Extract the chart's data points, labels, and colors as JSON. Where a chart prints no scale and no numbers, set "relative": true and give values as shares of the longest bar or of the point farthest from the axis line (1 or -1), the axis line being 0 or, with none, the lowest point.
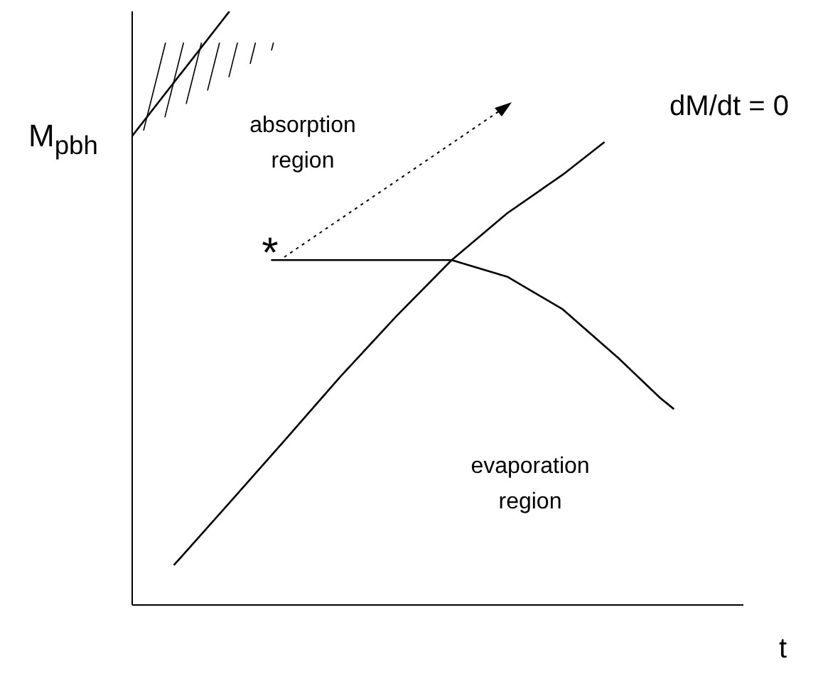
{
  "chart_data": {
    "type": "line",
    "relative": true,
    "xlabel": "t",
    "ylabel": "M$_{pbh}$",
    "categories": [
      null,
      null,
      null,
      null,
      null,
      null,
      null,
      null,
      null,
      null,
      null,
      null,
      null,
      null,
      null,
      null,
      null,
      null,
      null,
      null,
      null,
      null,
      null,
      null,
      null,
      null,
      null,
      null,
      null,
      null,
      null,
      null,
      null,
      null,
      null,
      null,
      null,
      null,
      null,
      null,
      null,
      null,
      null,
      null,
      null
    ],
    "annotations": [
      "absorption region",
      "evaporation region",
      "dM/dt = 0",
      "*"
    ],
    "series": [
      {
        "color": "#000000",
        "values": [
          0.79,
          null,
          null,
          null,
          null,
          null,
          null,
          1,
          null,
          null,
          null,
          null,
          null,
          null,
          null,
          null,
          null,
          null,
          null,
          null,
          null,
          null,
          null,
          null,
          null,
          null,
          null,
          null,
          null,
          null,
          null,
          null,
          null,
          null,
          null,
          null,
          null,
          null,
          null,
          null,
          null,
          null,
          null,
          null,
          null
        ]
      },
      {
        "color": "#000000",
        "values": [
          null,
          null,
          null,
          0.067,
          null,
          null,
          null,
          0.172,
          null,
          null,
          null,
          0.278,
          null,
          null,
          null,
          0.385,
          null,
          null,
          null,
          0.486,
          null,
          null,
          null,
          0.581,
          null,
          null,
          null,
          0.66,
          null,
          null,
          null,
          0.725,
          null,
          null,
          0.78,
          null,
          null,
          null,
          null,
          null,
          null,
          null,
          null,
          null,
          null
        ]
      },
      {
        "color": "#000000",
        "values": [
          null,
          null,
          null,
          null,
          null,
          null,
          null,
          null,
          null,
          null,
          0.581,
          null,
          null,
          null,
          null,
          null,
          null,
          null,
          null,
          null,
          null,
          null,
          null,
          0.581,
          null,
          null,
          null,
          0.553,
          null,
          null,
          null,
          0.498,
          null,
          null,
          null,
          0.416,
          null,
          null,
          0.349,
          0.33,
          null,
          null,
          null,
          null,
          null
        ]
      }
    ]
  }
}
